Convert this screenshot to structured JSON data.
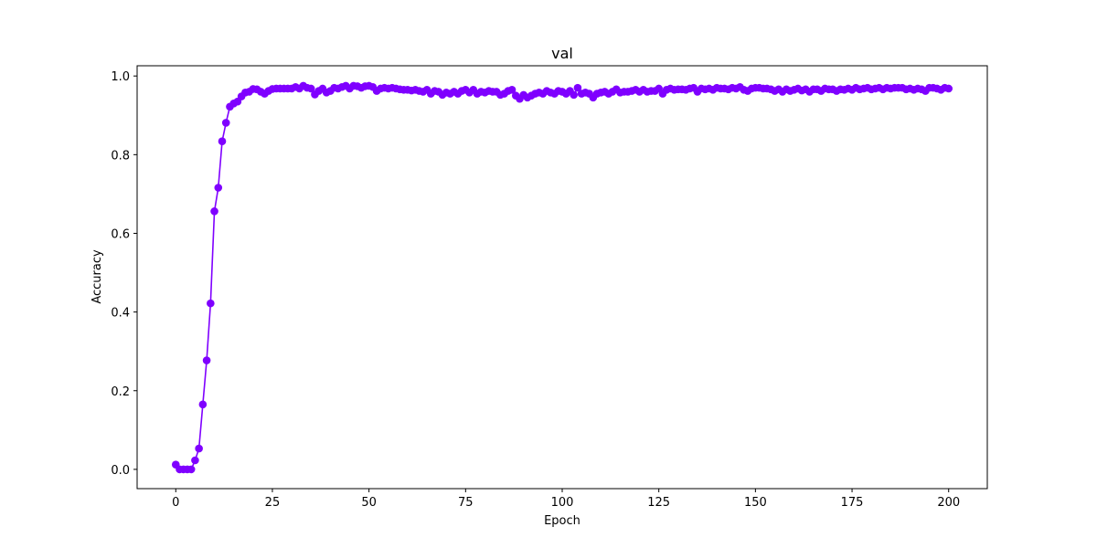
{
  "chart_data": {
    "type": "line",
    "title": "val",
    "x_label": "Epoch",
    "y_label": "Accuracy",
    "x": [
      0,
      1,
      2,
      3,
      4,
      5,
      6,
      7,
      8,
      9,
      10,
      11,
      12,
      13,
      14,
      15,
      16,
      17,
      18,
      19,
      20,
      21,
      22,
      23,
      24,
      25,
      26,
      27,
      28,
      29,
      30,
      31,
      32,
      33,
      34,
      35,
      36,
      37,
      38,
      39,
      40,
      41,
      42,
      43,
      44,
      45,
      46,
      47,
      48,
      49,
      50,
      51,
      52,
      53,
      54,
      55,
      56,
      57,
      58,
      59,
      60,
      61,
      62,
      63,
      64,
      65,
      66,
      67,
      68,
      69,
      70,
      71,
      72,
      73,
      74,
      75,
      76,
      77,
      78,
      79,
      80,
      81,
      82,
      83,
      84,
      85,
      86,
      87,
      88,
      89,
      90,
      91,
      92,
      93,
      94,
      95,
      96,
      97,
      98,
      99,
      100,
      101,
      102,
      103,
      104,
      105,
      106,
      107,
      108,
      109,
      110,
      111,
      112,
      113,
      114,
      115,
      116,
      117,
      118,
      119,
      120,
      121,
      122,
      123,
      124,
      125,
      126,
      127,
      128,
      129,
      130,
      131,
      132,
      133,
      134,
      135,
      136,
      137,
      138,
      139,
      140,
      141,
      142,
      143,
      144,
      145,
      146,
      147,
      148,
      149,
      150,
      151,
      152,
      153,
      154,
      155,
      156,
      157,
      158,
      159,
      160,
      161,
      162,
      163,
      164,
      165,
      166,
      167,
      168,
      169,
      170,
      171,
      172,
      173,
      174,
      175,
      176,
      177,
      178,
      179,
      180,
      181,
      182,
      183,
      184,
      185,
      186,
      187,
      188,
      189,
      190,
      191,
      192,
      193,
      194,
      195,
      196,
      197,
      198,
      199,
      200
    ],
    "series": [
      {
        "name": "val",
        "color": "#7f00ff",
        "values": [
          0.012,
          0.0,
          0.0,
          0.0,
          0.0,
          0.023,
          0.053,
          0.165,
          0.277,
          0.422,
          0.656,
          0.716,
          0.834,
          0.881,
          0.922,
          0.93,
          0.935,
          0.948,
          0.958,
          0.96,
          0.967,
          0.966,
          0.96,
          0.955,
          0.962,
          0.967,
          0.968,
          0.968,
          0.968,
          0.968,
          0.968,
          0.972,
          0.968,
          0.975,
          0.97,
          0.968,
          0.953,
          0.962,
          0.968,
          0.958,
          0.962,
          0.97,
          0.968,
          0.972,
          0.975,
          0.968,
          0.975,
          0.974,
          0.97,
          0.974,
          0.975,
          0.972,
          0.962,
          0.968,
          0.97,
          0.968,
          0.97,
          0.968,
          0.966,
          0.965,
          0.965,
          0.963,
          0.965,
          0.962,
          0.96,
          0.965,
          0.955,
          0.962,
          0.96,
          0.952,
          0.958,
          0.955,
          0.96,
          0.955,
          0.962,
          0.965,
          0.958,
          0.965,
          0.955,
          0.96,
          0.958,
          0.962,
          0.96,
          0.96,
          0.952,
          0.955,
          0.962,
          0.965,
          0.95,
          0.942,
          0.952,
          0.945,
          0.95,
          0.955,
          0.958,
          0.955,
          0.962,
          0.958,
          0.955,
          0.962,
          0.96,
          0.955,
          0.962,
          0.952,
          0.97,
          0.955,
          0.958,
          0.955,
          0.945,
          0.955,
          0.958,
          0.96,
          0.955,
          0.96,
          0.966,
          0.958,
          0.96,
          0.96,
          0.962,
          0.965,
          0.96,
          0.965,
          0.96,
          0.962,
          0.962,
          0.968,
          0.955,
          0.965,
          0.968,
          0.965,
          0.966,
          0.966,
          0.965,
          0.968,
          0.97,
          0.96,
          0.968,
          0.966,
          0.968,
          0.965,
          0.97,
          0.968,
          0.968,
          0.966,
          0.97,
          0.968,
          0.972,
          0.965,
          0.962,
          0.968,
          0.97,
          0.97,
          0.968,
          0.968,
          0.966,
          0.962,
          0.966,
          0.96,
          0.966,
          0.962,
          0.965,
          0.968,
          0.963,
          0.966,
          0.96,
          0.966,
          0.966,
          0.962,
          0.968,
          0.966,
          0.966,
          0.962,
          0.966,
          0.965,
          0.968,
          0.965,
          0.97,
          0.966,
          0.968,
          0.97,
          0.966,
          0.968,
          0.97,
          0.966,
          0.97,
          0.968,
          0.97,
          0.97,
          0.97,
          0.966,
          0.968,
          0.965,
          0.968,
          0.966,
          0.962,
          0.97,
          0.97,
          0.968,
          0.965,
          0.97,
          0.968
        ]
      }
    ],
    "xlim": [
      -10,
      210
    ],
    "ylim": [
      -0.049,
      1.026
    ],
    "xticks": [
      0,
      25,
      50,
      75,
      100,
      125,
      150,
      175,
      200
    ],
    "yticks": [
      {
        "value": 0,
        "label": "0.0"
      },
      0.2,
      0.4,
      0.6,
      0.8,
      {
        "value": 1,
        "label": "1.0"
      }
    ],
    "grid": false
  }
}
